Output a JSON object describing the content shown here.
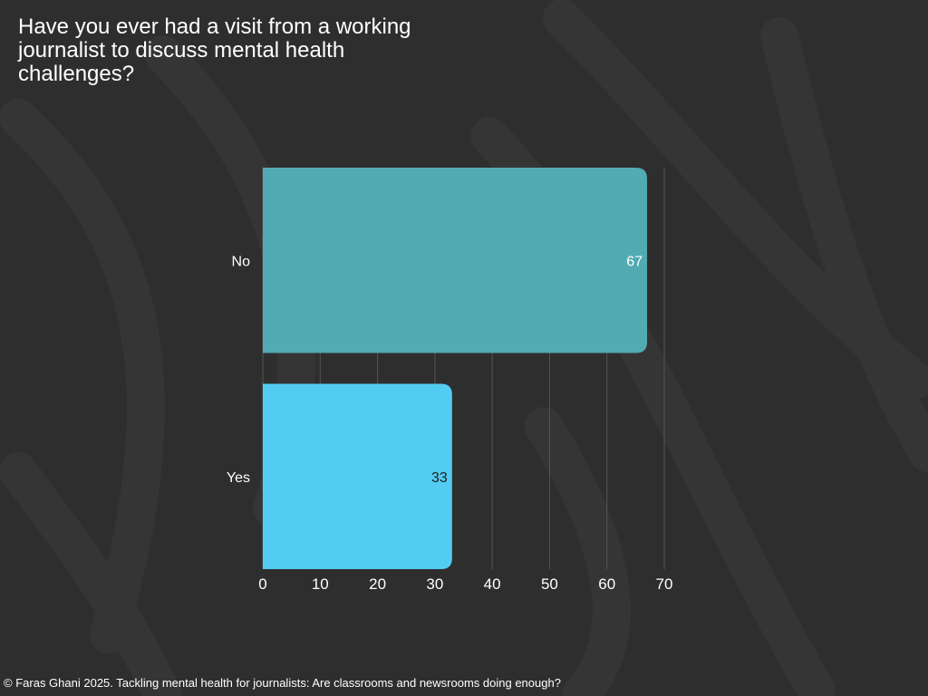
{
  "colors": {
    "background": "#2e2e2e",
    "pattern": "#363636",
    "no_bar": "#52abb3",
    "yes_bar": "#53ccf2",
    "grid": "#555555"
  },
  "chart_data": {
    "type": "bar",
    "orientation": "horizontal",
    "title": "Have you ever had a visit from a working journalist to discuss mental health challenges?",
    "categories": [
      "No",
      "Yes"
    ],
    "values": [
      67,
      33
    ],
    "bar_colors": [
      "#52abb3",
      "#53ccf2"
    ],
    "label_colors": [
      "#ffffff",
      "#1e1e1e"
    ],
    "xlim": [
      0,
      70
    ],
    "xticks": [
      0,
      10,
      20,
      30,
      40,
      50,
      60,
      70
    ],
    "xlabel": "",
    "ylabel": "",
    "grid": true,
    "legend": "none"
  },
  "footer": {
    "copyright_symbol": "©",
    "text": "Faras Ghani 2025. Tackling mental health for journalists: Are classrooms and newsrooms doing enough?"
  }
}
